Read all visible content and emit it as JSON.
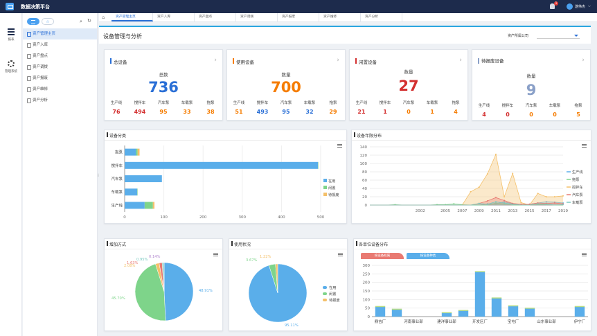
{
  "app": {
    "title": "数据决策平台",
    "notif_count": "1",
    "user": "游伟杰"
  },
  "leftnav": [
    {
      "label": "报表",
      "icon": "report-icon"
    },
    {
      "label": "管理系统",
      "icon": "gear-icon"
    }
  ],
  "sidebar": {
    "items": [
      "资产管理主页",
      "资产入库",
      "资产盘点",
      "资产调拨",
      "资产报废",
      "资产维修",
      "资产分析"
    ]
  },
  "tabs": [
    "资产管理主页",
    "资产入库",
    "资产盘点",
    "资产调拨",
    "资产报废",
    "资产维修",
    "资产分析"
  ],
  "page": {
    "title": "设备管理与分析",
    "filter_label": "资产所属公司",
    "filter_value": ""
  },
  "kpis": [
    {
      "title": "总设备",
      "sub": "总数",
      "value": "736",
      "color": "#2a6fd6",
      "bar": "#2a6fd6",
      "labels": [
        "生产线",
        "搅拌车",
        "汽车泵",
        "车载泵",
        "拖泵"
      ],
      "values": [
        "76",
        "494",
        "95",
        "33",
        "38"
      ],
      "vcolors": [
        "#d32f2f",
        "#d32f2f",
        "#f57c00",
        "#f57c00",
        "#f57c00"
      ]
    },
    {
      "title": "使用设备",
      "sub": "数量",
      "value": "700",
      "color": "#f57c00",
      "bar": "#f57c00",
      "labels": [
        "生产线",
        "搅拌车",
        "汽车泵",
        "车载泵",
        "拖泵"
      ],
      "values": [
        "51",
        "493",
        "95",
        "32",
        "29"
      ],
      "vcolors": [
        "#f57c00",
        "#2a6fd6",
        "#2a6fd6",
        "#2a6fd6",
        "#f57c00"
      ]
    },
    {
      "title": "闲置设备",
      "sub": "数量",
      "value": "27",
      "color": "#d32f2f",
      "bar": "#d32f2f",
      "labels": [
        "生产线",
        "搅拌车",
        "汽车泵",
        "车载泵",
        "拖泵"
      ],
      "values": [
        "21",
        "1",
        "0",
        "1",
        "4"
      ],
      "vcolors": [
        "#d32f2f",
        "#d32f2f",
        "#f57c00",
        "#f57c00",
        "#f57c00"
      ]
    },
    {
      "title": "待报废设备",
      "sub": "数量",
      "value": "9",
      "color": "#8aa0c8",
      "bar": "#8aa0c8",
      "labels": [
        "生产线",
        "搅拌车",
        "汽车泵",
        "车载泵",
        "拖泵"
      ],
      "values": [
        "4",
        "0",
        "0",
        "0",
        "5"
      ],
      "vcolors": [
        "#d32f2f",
        "#d32f2f",
        "#f57c00",
        "#f57c00",
        "#f57c00"
      ]
    }
  ],
  "panels": {
    "category": "设备分类",
    "years": "设备年限分布",
    "increase": "增加方式",
    "usage": "使用状况",
    "unit": "各单位设备分布"
  },
  "unit_tabs": [
    "按设备权属",
    "按设备种类"
  ],
  "chart_data": [
    {
      "type": "bar",
      "title": "设备分类",
      "orientation": "horizontal",
      "categories": [
        "拖泵",
        "搅拌车",
        "汽车泵",
        "车载泵",
        "生产线"
      ],
      "series": [
        {
          "name": "在用",
          "values": [
            29,
            493,
            95,
            32,
            51
          ],
          "color": "#5aaeea"
        },
        {
          "name": "闲置",
          "values": [
            4,
            1,
            0,
            1,
            21
          ],
          "color": "#7ed48a"
        },
        {
          "name": "待报废",
          "values": [
            5,
            0,
            0,
            0,
            4
          ],
          "color": "#f4c06a"
        }
      ],
      "xlim": [
        0,
        500
      ],
      "xticks": [
        0,
        100,
        200,
        300,
        400,
        500
      ],
      "legend": "right",
      "stacked": true
    },
    {
      "type": "area",
      "title": "设备年限分布",
      "x": [
        1996,
        1997,
        1998,
        1999,
        2000,
        2001,
        2002,
        2003,
        2004,
        2005,
        2006,
        2007,
        2008,
        2009,
        2010,
        2011,
        2012,
        2013,
        2014,
        2015,
        2016,
        2017,
        2018,
        2019
      ],
      "xticks": [
        "2002",
        "2005",
        "2007",
        "2009",
        "2011",
        "2013",
        "2015",
        "2017",
        "2019"
      ],
      "ylim": [
        0,
        140
      ],
      "yticks": [
        0,
        20,
        40,
        60,
        80,
        100,
        120,
        140
      ],
      "legend": "right",
      "series": [
        {
          "name": "生产线",
          "color": "#5aaeea",
          "values": [
            0,
            0,
            0,
            0,
            0,
            0,
            0,
            0,
            0,
            0,
            0,
            0,
            0,
            0,
            3,
            3,
            8,
            3,
            0,
            2,
            5,
            8,
            7,
            5
          ]
        },
        {
          "name": "拖泵",
          "color": "#7ed48a",
          "values": [
            0,
            0,
            0,
            1,
            0,
            0,
            0,
            0,
            1,
            1,
            3,
            1,
            0,
            0,
            0,
            5,
            3,
            0,
            0,
            0,
            1,
            1,
            0,
            0
          ]
        },
        {
          "name": "搅拌车",
          "color": "#f4c06a",
          "values": [
            0,
            0,
            0,
            0,
            0,
            0,
            0,
            0,
            0,
            0,
            0,
            0,
            32,
            43,
            75,
            122,
            20,
            76,
            6,
            0,
            28,
            20,
            20,
            22
          ]
        },
        {
          "name": "汽车泵",
          "color": "#e97a72",
          "values": [
            0,
            0,
            0,
            0,
            0,
            0,
            0,
            0,
            0,
            0,
            0,
            0,
            0,
            4,
            10,
            18,
            11,
            4,
            2,
            2,
            5,
            4,
            5,
            3
          ]
        },
        {
          "name": "车载泵",
          "color": "#78c9c0",
          "values": [
            0,
            0,
            0,
            0,
            0,
            0,
            0,
            0,
            0,
            0,
            0,
            0,
            0,
            4,
            2,
            8,
            5,
            2,
            0,
            0,
            3,
            2,
            0,
            1
          ]
        }
      ]
    },
    {
      "type": "pie",
      "title": "增加方式",
      "labels": [
        "48.91%",
        "45.70%",
        "2.08%",
        "1.63%",
        "0.95%",
        "0.14%"
      ],
      "values": [
        48.91,
        45.7,
        2.08,
        1.63,
        0.95,
        0.14
      ],
      "colors": [
        "#5aaeea",
        "#7ed48a",
        "#f4c06a",
        "#e97a72",
        "#78c9c0",
        "#b48ad0"
      ]
    },
    {
      "type": "pie",
      "title": "使用状况",
      "categories": [
        "在用",
        "闲置",
        "待报废"
      ],
      "labels": [
        "95.11%",
        "3.67%",
        "1.22%"
      ],
      "values": [
        95.11,
        3.67,
        1.22
      ],
      "colors": [
        "#5aaeea",
        "#7ed48a",
        "#f4c06a"
      ],
      "legend": "right"
    },
    {
      "type": "bar",
      "title": "各单位设备分布",
      "categories": [
        "鼎吉厂",
        "",
        "河南事业部",
        "",
        "建洋事业部",
        "",
        "开发区厂",
        "",
        "宝屯厂",
        "",
        "山东事业部",
        "",
        "伊宁厂"
      ],
      "values": [
        58,
        42,
        0,
        0,
        22,
        35,
        262,
        108,
        62,
        48,
        0,
        0,
        58
      ],
      "ylim": [
        0,
        300
      ],
      "yticks": [
        0,
        50,
        100,
        150,
        200,
        250,
        300
      ]
    }
  ]
}
